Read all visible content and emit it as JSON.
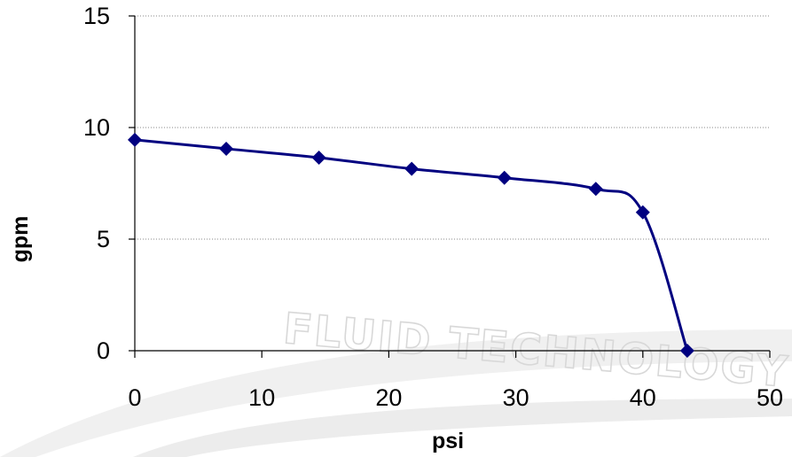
{
  "watermark": {
    "text": "FLUID TECHNOLOGY"
  },
  "chart_data": {
    "type": "line",
    "xlabel": "psi",
    "ylabel": "gpm",
    "xlim": [
      0,
      50
    ],
    "ylim": [
      0,
      15
    ],
    "xticks": [
      0,
      10,
      20,
      30,
      40,
      50
    ],
    "yticks": [
      0,
      5,
      10,
      15
    ],
    "grid": "horizontal dotted",
    "legend": "none",
    "series": [
      {
        "color": "#000080",
        "marker": "diamond",
        "x": [
          0,
          7.2,
          14.5,
          21.8,
          29.1,
          36.3,
          40.0,
          43.5
        ],
        "y": [
          9.45,
          9.05,
          8.65,
          8.15,
          7.75,
          7.25,
          6.2,
          0
        ]
      }
    ]
  }
}
